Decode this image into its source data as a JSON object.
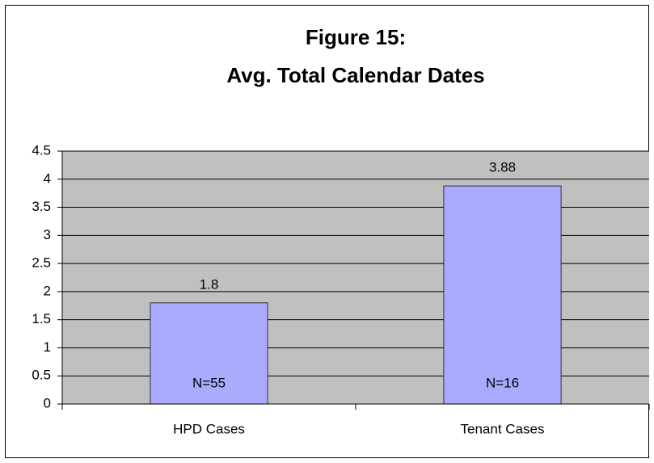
{
  "chart_data": {
    "type": "bar",
    "title": [
      "Figure 15:",
      "Avg. Total Calendar Dates"
    ],
    "categories": [
      "HPD Cases",
      "Tenant Cases"
    ],
    "values": [
      1.8,
      3.88
    ],
    "bar_notes": [
      "N=55",
      "N=16"
    ],
    "color": "#aaaaff",
    "ylim": [
      0,
      4.5
    ],
    "yticks": [
      0,
      0.5,
      1,
      1.5,
      2,
      2.5,
      3,
      3.5,
      4,
      4.5
    ],
    "grid": true
  }
}
